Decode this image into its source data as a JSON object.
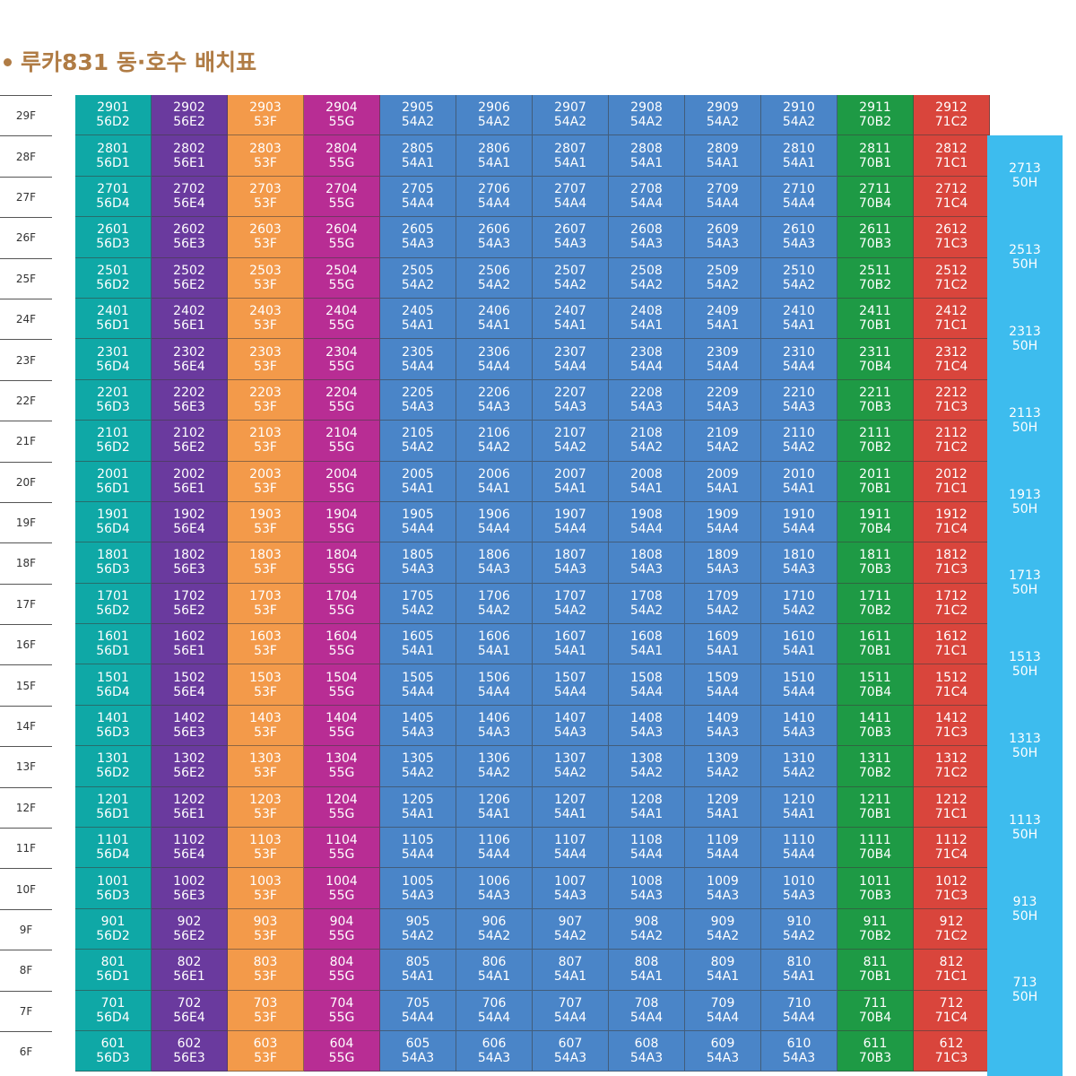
{
  "title": "루카831 동·호수 배치표",
  "colors": {
    "title": "#b07c45",
    "col1": "#0fa8a6",
    "col2": "#6a3a9e",
    "col3": "#f39a4a",
    "col4": "#b82d94",
    "col5_10": "#4a85c8",
    "col11": "#1e9a45",
    "col12": "#d9453c",
    "col13": "#3dbcee"
  },
  "floors": [
    {
      "label": "29F",
      "units": [
        "2901",
        "2902",
        "2903",
        "2904",
        "2905",
        "2906",
        "2907",
        "2908",
        "2909",
        "2910",
        "2911",
        "2912"
      ],
      "types": [
        "56D2",
        "56E2",
        "53F",
        "55G",
        "54A2",
        "54A2",
        "54A2",
        "54A2",
        "54A2",
        "54A2",
        "70B2",
        "71C2"
      ]
    },
    {
      "label": "28F",
      "units": [
        "2801",
        "2802",
        "2803",
        "2804",
        "2805",
        "2806",
        "2807",
        "2808",
        "2809",
        "2810",
        "2811",
        "2812"
      ],
      "types": [
        "56D1",
        "56E1",
        "53F",
        "55G",
        "54A1",
        "54A1",
        "54A1",
        "54A1",
        "54A1",
        "54A1",
        "70B1",
        "71C1"
      ]
    },
    {
      "label": "27F",
      "units": [
        "2701",
        "2702",
        "2703",
        "2704",
        "2705",
        "2706",
        "2707",
        "2708",
        "2709",
        "2710",
        "2711",
        "2712"
      ],
      "types": [
        "56D4",
        "56E4",
        "53F",
        "55G",
        "54A4",
        "54A4",
        "54A4",
        "54A4",
        "54A4",
        "54A4",
        "70B4",
        "71C4"
      ]
    },
    {
      "label": "26F",
      "units": [
        "2601",
        "2602",
        "2603",
        "2604",
        "2605",
        "2606",
        "2607",
        "2608",
        "2609",
        "2610",
        "2611",
        "2612"
      ],
      "types": [
        "56D3",
        "56E3",
        "53F",
        "55G",
        "54A3",
        "54A3",
        "54A3",
        "54A3",
        "54A3",
        "54A3",
        "70B3",
        "71C3"
      ]
    },
    {
      "label": "25F",
      "units": [
        "2501",
        "2502",
        "2503",
        "2504",
        "2505",
        "2506",
        "2507",
        "2508",
        "2509",
        "2510",
        "2511",
        "2512"
      ],
      "types": [
        "56D2",
        "56E2",
        "53F",
        "55G",
        "54A2",
        "54A2",
        "54A2",
        "54A2",
        "54A2",
        "54A2",
        "70B2",
        "71C2"
      ]
    },
    {
      "label": "24F",
      "units": [
        "2401",
        "2402",
        "2403",
        "2404",
        "2405",
        "2406",
        "2407",
        "2408",
        "2409",
        "2410",
        "2411",
        "2412"
      ],
      "types": [
        "56D1",
        "56E1",
        "53F",
        "55G",
        "54A1",
        "54A1",
        "54A1",
        "54A1",
        "54A1",
        "54A1",
        "70B1",
        "71C1"
      ]
    },
    {
      "label": "23F",
      "units": [
        "2301",
        "2302",
        "2303",
        "2304",
        "2305",
        "2306",
        "2307",
        "2308",
        "2309",
        "2310",
        "2311",
        "2312"
      ],
      "types": [
        "56D4",
        "56E4",
        "53F",
        "55G",
        "54A4",
        "54A4",
        "54A4",
        "54A4",
        "54A4",
        "54A4",
        "70B4",
        "71C4"
      ]
    },
    {
      "label": "22F",
      "units": [
        "2201",
        "2202",
        "2203",
        "2204",
        "2205",
        "2206",
        "2207",
        "2208",
        "2209",
        "2210",
        "2211",
        "2212"
      ],
      "types": [
        "56D3",
        "56E3",
        "53F",
        "55G",
        "54A3",
        "54A3",
        "54A3",
        "54A3",
        "54A3",
        "54A3",
        "70B3",
        "71C3"
      ]
    },
    {
      "label": "21F",
      "units": [
        "2101",
        "2102",
        "2103",
        "2104",
        "2105",
        "2106",
        "2107",
        "2108",
        "2109",
        "2110",
        "2111",
        "2112"
      ],
      "types": [
        "56D2",
        "56E2",
        "53F",
        "55G",
        "54A2",
        "54A2",
        "54A2",
        "54A2",
        "54A2",
        "54A2",
        "70B2",
        "71C2"
      ]
    },
    {
      "label": "20F",
      "units": [
        "2001",
        "2002",
        "2003",
        "2004",
        "2005",
        "2006",
        "2007",
        "2008",
        "2009",
        "2010",
        "2011",
        "2012"
      ],
      "types": [
        "56D1",
        "56E1",
        "53F",
        "55G",
        "54A1",
        "54A1",
        "54A1",
        "54A1",
        "54A1",
        "54A1",
        "70B1",
        "71C1"
      ]
    },
    {
      "label": "19F",
      "units": [
        "1901",
        "1902",
        "1903",
        "1904",
        "1905",
        "1906",
        "1907",
        "1908",
        "1909",
        "1910",
        "1911",
        "1912"
      ],
      "types": [
        "56D4",
        "56E4",
        "53F",
        "55G",
        "54A4",
        "54A4",
        "54A4",
        "54A4",
        "54A4",
        "54A4",
        "70B4",
        "71C4"
      ]
    },
    {
      "label": "18F",
      "units": [
        "1801",
        "1802",
        "1803",
        "1804",
        "1805",
        "1806",
        "1807",
        "1808",
        "1809",
        "1810",
        "1811",
        "1812"
      ],
      "types": [
        "56D3",
        "56E3",
        "53F",
        "55G",
        "54A3",
        "54A3",
        "54A3",
        "54A3",
        "54A3",
        "54A3",
        "70B3",
        "71C3"
      ]
    },
    {
      "label": "17F",
      "units": [
        "1701",
        "1702",
        "1703",
        "1704",
        "1705",
        "1706",
        "1707",
        "1708",
        "1709",
        "1710",
        "1711",
        "1712"
      ],
      "types": [
        "56D2",
        "56E2",
        "53F",
        "55G",
        "54A2",
        "54A2",
        "54A2",
        "54A2",
        "54A2",
        "54A2",
        "70B2",
        "71C2"
      ]
    },
    {
      "label": "16F",
      "units": [
        "1601",
        "1602",
        "1603",
        "1604",
        "1605",
        "1606",
        "1607",
        "1608",
        "1609",
        "1610",
        "1611",
        "1612"
      ],
      "types": [
        "56D1",
        "56E1",
        "53F",
        "55G",
        "54A1",
        "54A1",
        "54A1",
        "54A1",
        "54A1",
        "54A1",
        "70B1",
        "71C1"
      ]
    },
    {
      "label": "15F",
      "units": [
        "1501",
        "1502",
        "1503",
        "1504",
        "1505",
        "1506",
        "1507",
        "1508",
        "1509",
        "1510",
        "1511",
        "1512"
      ],
      "types": [
        "56D4",
        "56E4",
        "53F",
        "55G",
        "54A4",
        "54A4",
        "54A4",
        "54A4",
        "54A4",
        "54A4",
        "70B4",
        "71C4"
      ]
    },
    {
      "label": "14F",
      "units": [
        "1401",
        "1402",
        "1403",
        "1404",
        "1405",
        "1406",
        "1407",
        "1408",
        "1409",
        "1410",
        "1411",
        "1412"
      ],
      "types": [
        "56D3",
        "56E3",
        "53F",
        "55G",
        "54A3",
        "54A3",
        "54A3",
        "54A3",
        "54A3",
        "54A3",
        "70B3",
        "71C3"
      ]
    },
    {
      "label": "13F",
      "units": [
        "1301",
        "1302",
        "1303",
        "1304",
        "1305",
        "1306",
        "1307",
        "1308",
        "1309",
        "1310",
        "1311",
        "1312"
      ],
      "types": [
        "56D2",
        "56E2",
        "53F",
        "55G",
        "54A2",
        "54A2",
        "54A2",
        "54A2",
        "54A2",
        "54A2",
        "70B2",
        "71C2"
      ]
    },
    {
      "label": "12F",
      "units": [
        "1201",
        "1202",
        "1203",
        "1204",
        "1205",
        "1206",
        "1207",
        "1208",
        "1209",
        "1210",
        "1211",
        "1212"
      ],
      "types": [
        "56D1",
        "56E1",
        "53F",
        "55G",
        "54A1",
        "54A1",
        "54A1",
        "54A1",
        "54A1",
        "54A1",
        "70B1",
        "71C1"
      ]
    },
    {
      "label": "11F",
      "units": [
        "1101",
        "1102",
        "1103",
        "1104",
        "1105",
        "1106",
        "1107",
        "1108",
        "1109",
        "1110",
        "1111",
        "1112"
      ],
      "types": [
        "56D4",
        "56E4",
        "53F",
        "55G",
        "54A4",
        "54A4",
        "54A4",
        "54A4",
        "54A4",
        "54A4",
        "70B4",
        "71C4"
      ]
    },
    {
      "label": "10F",
      "units": [
        "1001",
        "1002",
        "1003",
        "1004",
        "1005",
        "1006",
        "1007",
        "1008",
        "1009",
        "1010",
        "1011",
        "1012"
      ],
      "types": [
        "56D3",
        "56E3",
        "53F",
        "55G",
        "54A3",
        "54A3",
        "54A3",
        "54A3",
        "54A3",
        "54A3",
        "70B3",
        "71C3"
      ]
    },
    {
      "label": "9F",
      "units": [
        "901",
        "902",
        "903",
        "904",
        "905",
        "906",
        "907",
        "908",
        "909",
        "910",
        "911",
        "912"
      ],
      "types": [
        "56D2",
        "56E2",
        "53F",
        "55G",
        "54A2",
        "54A2",
        "54A2",
        "54A2",
        "54A2",
        "54A2",
        "70B2",
        "71C2"
      ]
    },
    {
      "label": "8F",
      "units": [
        "801",
        "802",
        "803",
        "804",
        "805",
        "806",
        "807",
        "808",
        "809",
        "810",
        "811",
        "812"
      ],
      "types": [
        "56D1",
        "56E1",
        "53F",
        "55G",
        "54A1",
        "54A1",
        "54A1",
        "54A1",
        "54A1",
        "54A1",
        "70B1",
        "71C1"
      ]
    },
    {
      "label": "7F",
      "units": [
        "701",
        "702",
        "703",
        "704",
        "705",
        "706",
        "707",
        "708",
        "709",
        "710",
        "711",
        "712"
      ],
      "types": [
        "56D4",
        "56E4",
        "53F",
        "55G",
        "54A4",
        "54A4",
        "54A4",
        "54A4",
        "54A4",
        "54A4",
        "70B4",
        "71C4"
      ]
    },
    {
      "label": "6F",
      "units": [
        "601",
        "602",
        "603",
        "604",
        "605",
        "606",
        "607",
        "608",
        "609",
        "610",
        "611",
        "612"
      ],
      "types": [
        "56D3",
        "56E3",
        "53F",
        "55G",
        "54A3",
        "54A3",
        "54A3",
        "54A3",
        "54A3",
        "54A3",
        "70B3",
        "71C3"
      ]
    }
  ],
  "column13": [
    {
      "unit": "2713",
      "type": "50H"
    },
    {
      "unit": "2513",
      "type": "50H"
    },
    {
      "unit": "2313",
      "type": "50H"
    },
    {
      "unit": "2113",
      "type": "50H"
    },
    {
      "unit": "1913",
      "type": "50H"
    },
    {
      "unit": "1713",
      "type": "50H"
    },
    {
      "unit": "1513",
      "type": "50H"
    },
    {
      "unit": "1313",
      "type": "50H"
    },
    {
      "unit": "1113",
      "type": "50H"
    },
    {
      "unit": "913",
      "type": "50H"
    },
    {
      "unit": "713",
      "type": "50H"
    }
  ]
}
